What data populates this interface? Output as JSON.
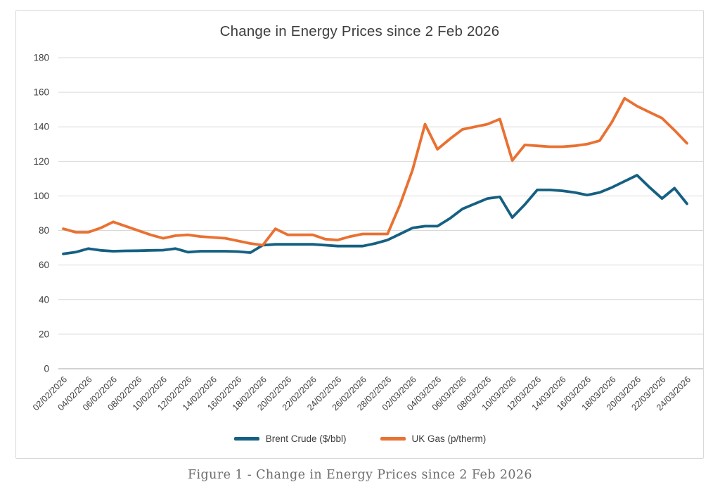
{
  "window": {
    "background": "#ffffff",
    "frame_border_color": "#d9d9d9"
  },
  "chart_data": {
    "type": "line",
    "title": "Change in Energy Prices since 2 Feb 2026",
    "caption": "Figure 1 - Change in Energy Prices since 2 Feb 2026",
    "xlabel": "",
    "ylabel": "",
    "ylim": [
      0,
      180
    ],
    "y_ticks": [
      0,
      20,
      40,
      60,
      80,
      100,
      120,
      140,
      160,
      180
    ],
    "grid": true,
    "legend_position": "bottom",
    "gridline_color": "#d9d9d9",
    "axis_line_color": "#a6a6a6",
    "axis_text_color": "#404040",
    "label_every": 2,
    "x": [
      "02/02/2026",
      "03/02/2026",
      "04/02/2026",
      "05/02/2026",
      "06/02/2026",
      "07/02/2026",
      "08/02/2026",
      "09/02/2026",
      "10/02/2026",
      "11/02/2026",
      "12/02/2026",
      "13/02/2026",
      "14/02/2026",
      "15/02/2026",
      "16/02/2026",
      "17/02/2026",
      "18/02/2026",
      "19/02/2026",
      "20/02/2026",
      "21/02/2026",
      "22/02/2026",
      "23/02/2026",
      "24/02/2026",
      "25/02/2026",
      "26/02/2026",
      "27/02/2026",
      "28/02/2026",
      "01/03/2026",
      "02/03/2026",
      "03/03/2026",
      "04/03/2026",
      "05/03/2026",
      "06/03/2026",
      "07/03/2026",
      "08/03/2026",
      "09/03/2026",
      "10/03/2026",
      "11/03/2026",
      "12/03/2026",
      "13/03/2026",
      "14/03/2026",
      "15/03/2026",
      "16/03/2026",
      "17/03/2026",
      "18/03/2026",
      "19/03/2026",
      "20/03/2026",
      "21/03/2026",
      "22/03/2026",
      "23/03/2026",
      "24/03/2026"
    ],
    "x_tick_labels": [
      "02/02/2026",
      "04/02/2026",
      "06/02/2026",
      "08/02/2026",
      "10/02/2026",
      "12/02/2026",
      "14/02/2026",
      "16/02/2026",
      "18/02/2026",
      "20/02/2026",
      "22/02/2026",
      "24/02/2026",
      "26/02/2026",
      "28/02/2026",
      "02/03/2026",
      "04/03/2026",
      "06/03/2026",
      "08/03/2026",
      "10/03/2026",
      "12/03/2026",
      "14/03/2026",
      "16/03/2026",
      "18/03/2026",
      "20/03/2026",
      "22/03/2026",
      "24/03/2026"
    ],
    "series": [
      {
        "name": "Brent Crude ($/bbl)",
        "color": "#156082",
        "values": [
          66.5,
          67.5,
          69.5,
          68.5,
          68,
          68.2,
          68.3,
          68.5,
          68.6,
          69.5,
          67.5,
          68,
          68,
          68,
          67.8,
          67.2,
          71.5,
          72,
          72,
          72,
          72,
          71.5,
          71,
          71,
          71,
          72.5,
          74.5,
          78,
          81.5,
          82.5,
          82.5,
          87,
          92.5,
          95.5,
          98.5,
          99.5,
          87.5,
          95,
          103.5,
          103.5,
          103,
          102,
          100.5,
          102,
          105,
          108.5,
          112,
          105,
          98.5,
          104.5,
          95.5
        ]
      },
      {
        "name": "UK Gas (p/therm)",
        "color": "#E97132",
        "values": [
          81,
          79,
          79,
          81.5,
          85,
          82.5,
          80,
          77.5,
          75.5,
          77,
          77.5,
          76.5,
          76,
          75.5,
          74,
          72.5,
          71.5,
          81,
          77.5,
          77.5,
          77.5,
          75,
          74.5,
          76.5,
          78,
          78,
          78,
          95,
          115,
          141.5,
          127,
          133,
          138.5,
          140,
          141.5,
          144.5,
          120.5,
          129.5,
          129,
          128.5,
          128.5,
          129,
          130,
          132,
          143,
          156.5,
          152,
          148.5,
          145,
          138,
          130.5
        ]
      }
    ]
  }
}
